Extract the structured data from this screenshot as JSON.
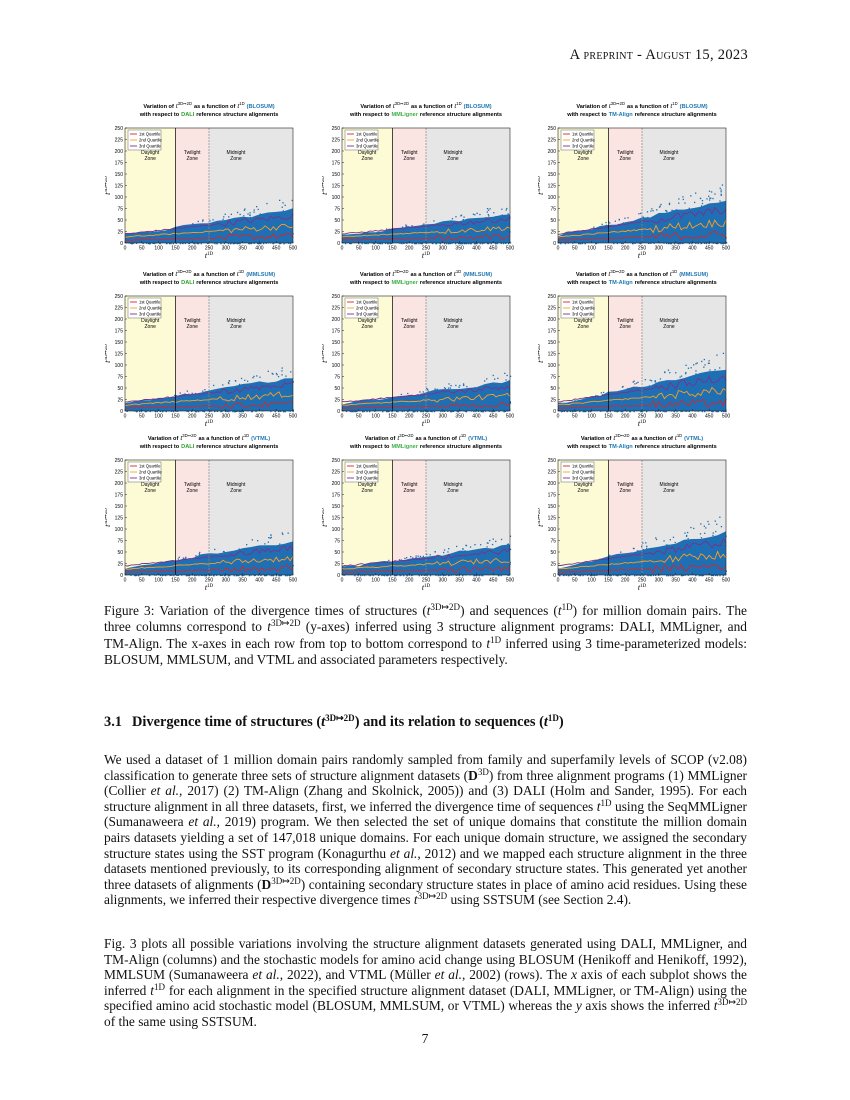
{
  "header": "A preprint - August 15, 2023",
  "figure": {
    "title_pre": "Variation of",
    "title_mid": "as a function of",
    "line2_pre": "with respect to",
    "line2_post": "reference structure alignments",
    "t_var": "t",
    "y_sup": "3D↦2D",
    "x_sup": "1D",
    "model_color": "#1f77b4",
    "panels": [
      {
        "model": "(BLOSUM)",
        "program": "DALI",
        "program_color": "#2ca02c"
      },
      {
        "model": "(BLOSUM)",
        "program": "MMLigner",
        "program_color": "#3cb043"
      },
      {
        "model": "(BLOSUM)",
        "program": "TM-Align",
        "program_color": "#1f77b4"
      },
      {
        "model": "(MMLSUM)",
        "program": "DALI",
        "program_color": "#2ca02c"
      },
      {
        "model": "(MMLSUM)",
        "program": "MMLigner",
        "program_color": "#3cb043"
      },
      {
        "model": "(MMLSUM)",
        "program": "TM-Align",
        "program_color": "#1f77b4"
      },
      {
        "model": "(VTML)",
        "program": "DALI",
        "program_color": "#2ca02c"
      },
      {
        "model": "(VTML)",
        "program": "MMLigner",
        "program_color": "#3cb043"
      },
      {
        "model": "(VTML)",
        "program": "TM-Align",
        "program_color": "#1f77b4"
      }
    ],
    "xlim": [
      0,
      500
    ],
    "xticks": [
      0,
      50,
      100,
      150,
      200,
      250,
      300,
      350,
      400,
      450,
      500
    ],
    "ylim": [
      0,
      250
    ],
    "yticks": [
      0,
      25,
      50,
      75,
      100,
      125,
      150,
      175,
      200,
      225,
      250
    ],
    "legend": [
      {
        "name": "1st Quartile",
        "color": "#d62728"
      },
      {
        "name": "2nd Quartile",
        "color": "#ff9f1c"
      },
      {
        "name": "3rd Quartile",
        "color": "#7e2f8e"
      }
    ],
    "zones": [
      {
        "label": [
          "Daylight",
          "Zone"
        ],
        "range": [
          0,
          150
        ],
        "color": "#fcfbd6"
      },
      {
        "label": [
          "Twilight",
          "Zone"
        ],
        "range": [
          150,
          250
        ],
        "color": "#fbe5e3"
      },
      {
        "label": [
          "Midnight",
          "Zone"
        ],
        "range": [
          250,
          500
        ],
        "color": "#e6e6e6"
      }
    ],
    "point_color": "#1f6fb4"
  },
  "caption": [
    "Figure 3: Variation of the divergence times of structures (",
    {
      "m": "t",
      "sup": "3D↦2D"
    },
    ") and sequences (",
    {
      "m": "t",
      "sup": "1D"
    },
    ") for million domain pairs. The three columns correspond to ",
    {
      "m": "t",
      "sup": "3D↦2D"
    },
    " (y-axes) inferred using 3 structure alignment programs: DALI, MMLigner, and TM-Align. The x-axes in each row from top to bottom correspond to ",
    {
      "m": "t",
      "sup": "1D"
    },
    " inferred using 3 time-parameterized models: BLOSUM, MMLSUM, and VTML and associated parameters respectively."
  ],
  "section": {
    "number": "3.1",
    "title": [
      "Divergence time of structures (",
      {
        "m": "t",
        "sup": "3D↦2D"
      },
      ") and its relation to sequences (",
      {
        "m": "t",
        "sup": "1D"
      },
      ")"
    ]
  },
  "paragraphs": [
    [
      "We used a dataset of 1 million domain pairs randomly sampled from family and superfamily levels of SCOP (v2.08) classification to generate three sets of structure alignment datasets (",
      {
        "mb": "D",
        "sup": "3D"
      },
      ") from three alignment programs (1) MMLigner (Collier ",
      {
        "i": "et al."
      },
      ", 2017) (2) TM-Align (Zhang and Skolnick, 2005)) and (3) DALI (Holm and Sander, 1995). For each structure alignment in all three datasets, first, we inferred the divergence time of sequences ",
      {
        "m": "t",
        "sup": "1D"
      },
      " using the SeqMMLigner (Sumanaweera ",
      {
        "i": "et al."
      },
      ", 2019) program. We then selected the set of unique domains that constitute the million domain pairs datasets yielding a set of 147,018 unique domains. For each unique domain structure, we assigned the secondary structure states using the SST program (Konagurthu ",
      {
        "i": "et al."
      },
      ", 2012) and we mapped each structure alignment in the three datasets mentioned previously, to its corresponding alignment of secondary structure states. This generated yet another three datasets of alignments (",
      {
        "mb": "D",
        "sup": "3D↦2D"
      },
      ") containing secondary structure states in place of amino acid residues. Using these alignments, we inferred their respective divergence times ",
      {
        "m": "t",
        "sup": "3D↦2D"
      },
      " using SSTSUM (see Section 2.4)."
    ],
    [
      "Fig. 3 plots all possible variations involving the structure alignment datasets generated using DALI, MMLigner, and TM-Align (columns) and the stochastic models for amino acid change using BLOSUM (Henikoff and Henikoff, 1992), MMLSUM (Sumanaweera ",
      {
        "i": "et al."
      },
      ", 2022), and VTML (Müller ",
      {
        "i": "et al."
      },
      ", 2002) (rows). The ",
      {
        "m": "x"
      },
      " axis of each subplot shows the inferred ",
      {
        "m": "t",
        "sup": "1D"
      },
      " for each alignment in the specified structure alignment dataset (DALI, MMLigner, or TM-Align) using the specified amino acid stochastic model (BLOSUM, MMLSUM, or VTML) whereas the ",
      {
        "m": "y"
      },
      " axis shows the inferred ",
      {
        "m": "t",
        "sup": "3D↦2D"
      },
      " of the same using SSTSUM."
    ]
  ],
  "page_number": "7"
}
